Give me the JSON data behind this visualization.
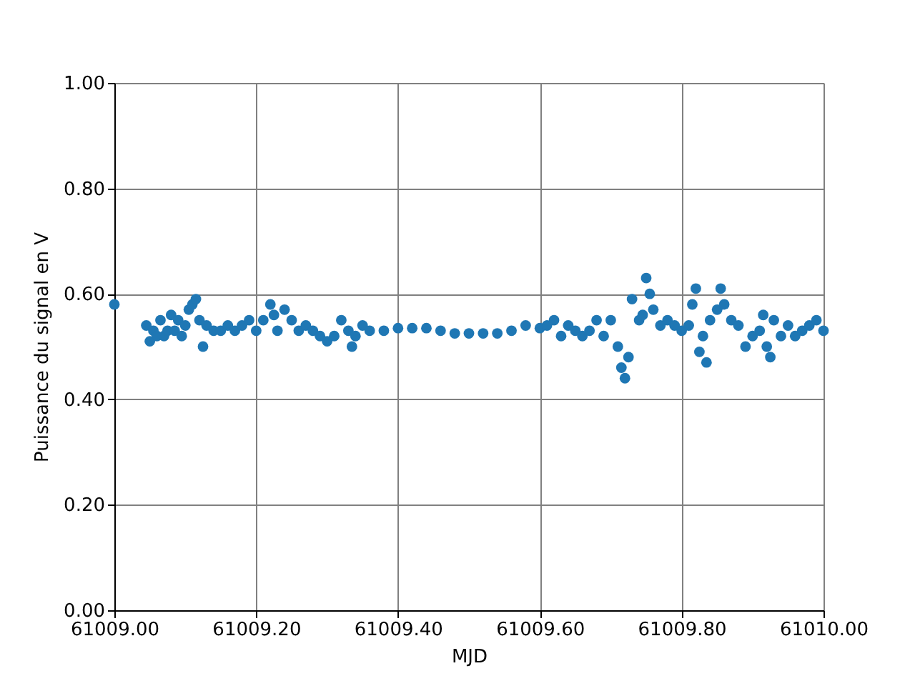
{
  "chart_data": {
    "type": "scatter",
    "xlabel": "MJD",
    "ylabel": "Puissance du signal en V",
    "xlim": [
      61009.0,
      61010.0
    ],
    "ylim": [
      0.0,
      1.0
    ],
    "xticks": [
      {
        "value": 61009.0,
        "label": "61009.00"
      },
      {
        "value": 61009.2,
        "label": "61009.20"
      },
      {
        "value": 61009.4,
        "label": "61009.40"
      },
      {
        "value": 61009.6,
        "label": "61009.60"
      },
      {
        "value": 61009.8,
        "label": "61009.80"
      },
      {
        "value": 61010.0,
        "label": "61010.00"
      }
    ],
    "yticks": [
      {
        "value": 0.0,
        "label": "0.00"
      },
      {
        "value": 0.2,
        "label": "0.20"
      },
      {
        "value": 0.4,
        "label": "0.40"
      },
      {
        "value": 0.6,
        "label": "0.60"
      },
      {
        "value": 0.8,
        "label": "0.80"
      },
      {
        "value": 1.0,
        "label": "1.00"
      }
    ],
    "grid": true,
    "marker": "circle",
    "series": [
      {
        "color": "#1f77b4",
        "x": [
          61009.0,
          61009.045,
          61009.05,
          61009.055,
          61009.06,
          61009.065,
          61009.07,
          61009.075,
          61009.08,
          61009.085,
          61009.09,
          61009.095,
          61009.1,
          61009.105,
          61009.11,
          61009.115,
          61009.12,
          61009.125,
          61009.13,
          61009.14,
          61009.15,
          61009.16,
          61009.17,
          61009.18,
          61009.19,
          61009.2,
          61009.21,
          61009.22,
          61009.225,
          61009.23,
          61009.24,
          61009.25,
          61009.26,
          61009.27,
          61009.28,
          61009.29,
          61009.3,
          61009.31,
          61009.32,
          61009.33,
          61009.335,
          61009.34,
          61009.35,
          61009.36,
          61009.38,
          61009.4,
          61009.42,
          61009.44,
          61009.46,
          61009.48,
          61009.5,
          61009.52,
          61009.54,
          61009.56,
          61009.58,
          61009.6,
          61009.61,
          61009.62,
          61009.63,
          61009.64,
          61009.65,
          61009.66,
          61009.67,
          61009.68,
          61009.69,
          61009.7,
          61009.71,
          61009.715,
          61009.72,
          61009.725,
          61009.73,
          61009.74,
          61009.745,
          61009.75,
          61009.755,
          61009.76,
          61009.77,
          61009.78,
          61009.79,
          61009.8,
          61009.81,
          61009.815,
          61009.82,
          61009.825,
          61009.83,
          61009.835,
          61009.84,
          61009.85,
          61009.855,
          61009.86,
          61009.87,
          61009.88,
          61009.89,
          61009.9,
          61009.91,
          61009.915,
          61009.92,
          61009.925,
          61009.93,
          61009.94,
          61009.95,
          61009.96,
          61009.97,
          61009.98,
          61009.99,
          61010.0
        ],
        "values": [
          0.58,
          0.54,
          0.51,
          0.53,
          0.52,
          0.55,
          0.52,
          0.53,
          0.56,
          0.53,
          0.55,
          0.52,
          0.54,
          0.57,
          0.58,
          0.59,
          0.55,
          0.5,
          0.54,
          0.53,
          0.53,
          0.54,
          0.53,
          0.54,
          0.55,
          0.53,
          0.55,
          0.58,
          0.56,
          0.53,
          0.57,
          0.55,
          0.53,
          0.54,
          0.53,
          0.52,
          0.51,
          0.52,
          0.55,
          0.53,
          0.5,
          0.52,
          0.54,
          0.53,
          0.53,
          0.535,
          0.535,
          0.535,
          0.53,
          0.525,
          0.525,
          0.525,
          0.525,
          0.53,
          0.54,
          0.535,
          0.54,
          0.55,
          0.52,
          0.54,
          0.53,
          0.52,
          0.53,
          0.55,
          0.52,
          0.55,
          0.5,
          0.46,
          0.44,
          0.48,
          0.59,
          0.55,
          0.56,
          0.63,
          0.6,
          0.57,
          0.54,
          0.55,
          0.54,
          0.53,
          0.54,
          0.58,
          0.61,
          0.49,
          0.52,
          0.47,
          0.55,
          0.57,
          0.61,
          0.58,
          0.55,
          0.54,
          0.5,
          0.52,
          0.53,
          0.56,
          0.5,
          0.48,
          0.55,
          0.52,
          0.54,
          0.52,
          0.53,
          0.54,
          0.55,
          0.53
        ]
      }
    ]
  }
}
